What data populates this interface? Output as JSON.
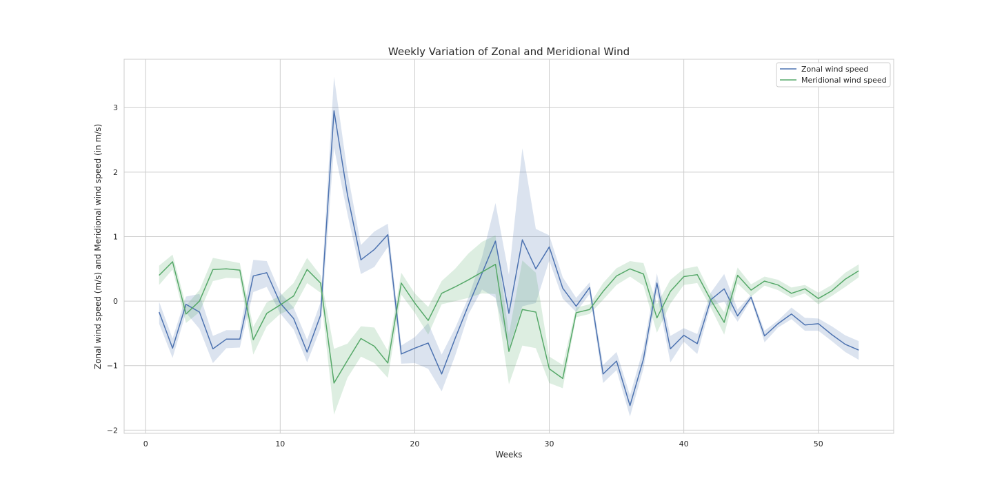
{
  "chart_data": {
    "type": "line",
    "title": "Weekly Variation of Zonal and Meridional Wind",
    "xlabel": "Weeks",
    "ylabel": "Zonal wind speed (m/s) and Meridional wind speed (in m/s)",
    "xlim": [
      -1.6,
      55.6
    ],
    "ylim": [
      -2.05,
      3.75
    ],
    "xticks": [
      0,
      10,
      20,
      30,
      40,
      50
    ],
    "xtick_labels": [
      "0",
      "10",
      "20",
      "30",
      "40",
      "50"
    ],
    "yticks": [
      -2,
      -1,
      0,
      1,
      2,
      3
    ],
    "ytick_labels": [
      "−2",
      "−1",
      "0",
      "1",
      "2",
      "3"
    ],
    "grid": true,
    "legend_position": "top-right",
    "x": [
      1,
      2,
      3,
      4,
      5,
      6,
      7,
      8,
      9,
      10,
      11,
      12,
      13,
      14,
      15,
      16,
      17,
      18,
      19,
      20,
      21,
      22,
      23,
      24,
      25,
      26,
      27,
      28,
      29,
      30,
      31,
      32,
      33,
      34,
      35,
      36,
      37,
      38,
      39,
      40,
      41,
      42,
      43,
      44,
      45,
      46,
      47,
      48,
      49,
      50,
      51,
      52,
      53
    ],
    "series": [
      {
        "name": "Zonal wind speed",
        "color": "#4c72b0",
        "values": [
          -0.17,
          -0.73,
          -0.05,
          -0.17,
          -0.74,
          -0.59,
          -0.59,
          0.39,
          0.44,
          -0.03,
          -0.27,
          -0.79,
          -0.22,
          2.95,
          1.65,
          0.64,
          0.8,
          1.03,
          -0.82,
          -0.73,
          -0.65,
          -1.13,
          -0.58,
          -0.06,
          0.43,
          0.93,
          -0.19,
          0.95,
          0.5,
          0.84,
          0.2,
          -0.08,
          0.21,
          -1.13,
          -0.93,
          -1.62,
          -0.9,
          0.28,
          -0.74,
          -0.53,
          -0.66,
          0.02,
          0.19,
          -0.23,
          0.06,
          -0.54,
          -0.35,
          -0.2,
          -0.37,
          -0.35,
          -0.52,
          -0.67,
          -0.76
        ],
        "ci_upper": [
          -0.01,
          -0.58,
          0.07,
          0.11,
          -0.54,
          -0.45,
          -0.45,
          0.64,
          0.62,
          0.13,
          -0.1,
          -0.6,
          -0.02,
          3.48,
          2.0,
          0.87,
          1.08,
          1.2,
          -0.69,
          -0.56,
          -0.34,
          -0.83,
          -0.42,
          0.06,
          0.68,
          1.52,
          0.41,
          2.37,
          1.12,
          1.02,
          0.37,
          0.05,
          0.29,
          -0.99,
          -0.79,
          -1.46,
          -0.73,
          0.43,
          -0.54,
          -0.42,
          -0.51,
          0.13,
          0.42,
          -0.13,
          0.1,
          -0.46,
          -0.3,
          -0.1,
          -0.26,
          -0.27,
          -0.39,
          -0.53,
          -0.62
        ],
        "ci_lower": [
          -0.35,
          -0.88,
          -0.18,
          -0.43,
          -0.96,
          -0.73,
          -0.72,
          0.14,
          0.22,
          -0.19,
          -0.44,
          -0.95,
          -0.42,
          2.38,
          1.35,
          0.42,
          0.53,
          0.84,
          -0.97,
          -0.96,
          -1.05,
          -1.4,
          -0.85,
          -0.2,
          0.18,
          0.05,
          -0.74,
          -0.08,
          -0.03,
          0.63,
          0.04,
          -0.17,
          0.11,
          -1.27,
          -1.07,
          -1.79,
          -1.05,
          0.12,
          -0.95,
          -0.63,
          -0.82,
          -0.07,
          -0.01,
          -0.32,
          0.02,
          -0.64,
          -0.41,
          -0.28,
          -0.46,
          -0.46,
          -0.62,
          -0.79,
          -0.91
        ]
      },
      {
        "name": "Meridional wind speed",
        "color": "#55a868",
        "values": [
          0.4,
          0.61,
          -0.2,
          0.0,
          0.49,
          0.5,
          0.48,
          -0.6,
          -0.19,
          -0.06,
          0.08,
          0.49,
          0.28,
          -1.27,
          -0.92,
          -0.58,
          -0.7,
          -0.96,
          0.28,
          -0.03,
          -0.3,
          0.12,
          0.22,
          0.33,
          0.45,
          0.57,
          -0.78,
          -0.13,
          -0.17,
          -1.05,
          -1.2,
          -0.18,
          -0.13,
          0.15,
          0.39,
          0.5,
          0.42,
          -0.26,
          0.15,
          0.38,
          0.41,
          0.02,
          -0.33,
          0.4,
          0.17,
          0.31,
          0.25,
          0.12,
          0.19,
          0.04,
          0.16,
          0.34,
          0.47
        ],
        "ci_upper": [
          0.55,
          0.72,
          -0.07,
          0.17,
          0.67,
          0.63,
          0.59,
          -0.4,
          -0.02,
          0.08,
          0.28,
          0.67,
          0.4,
          -0.74,
          -0.66,
          -0.39,
          -0.41,
          -0.77,
          0.44,
          0.12,
          -0.09,
          0.31,
          0.5,
          0.74,
          0.92,
          1.02,
          -0.51,
          0.63,
          0.44,
          -0.86,
          -0.99,
          -0.1,
          -0.05,
          0.28,
          0.51,
          0.62,
          0.59,
          -0.05,
          0.33,
          0.5,
          0.54,
          0.12,
          -0.17,
          0.52,
          0.26,
          0.38,
          0.33,
          0.21,
          0.25,
          0.13,
          0.25,
          0.44,
          0.57
        ],
        "ci_lower": [
          0.25,
          0.49,
          -0.34,
          -0.17,
          0.31,
          0.36,
          0.35,
          -0.83,
          -0.39,
          -0.2,
          -0.11,
          0.28,
          0.13,
          -1.76,
          -1.19,
          -0.86,
          -0.96,
          -1.19,
          0.1,
          -0.18,
          -0.52,
          -0.05,
          0.0,
          0.05,
          0.12,
          0.11,
          -1.29,
          -0.69,
          -0.73,
          -1.27,
          -1.35,
          -0.25,
          -0.2,
          0.02,
          0.25,
          0.38,
          0.24,
          -0.49,
          -0.04,
          0.25,
          0.28,
          -0.1,
          -0.52,
          0.27,
          0.07,
          0.24,
          0.17,
          0.05,
          0.12,
          -0.05,
          0.08,
          0.22,
          0.37
        ]
      }
    ]
  }
}
